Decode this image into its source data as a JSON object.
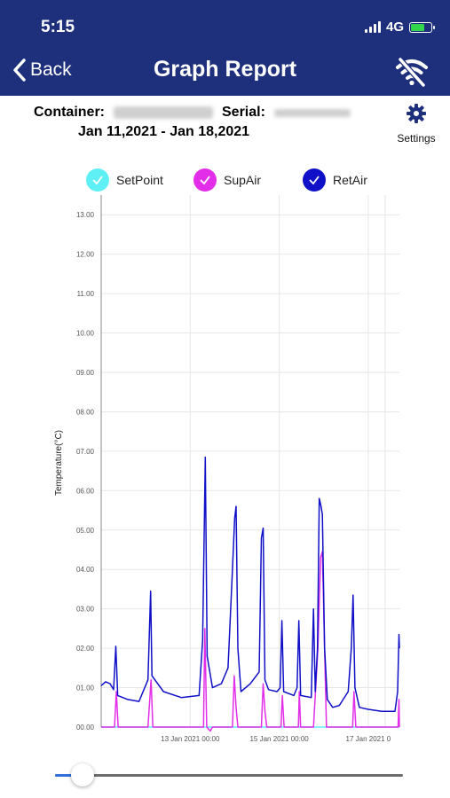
{
  "status_bar": {
    "time": "5:15",
    "network": "4G"
  },
  "header": {
    "back_label": "Back",
    "title": "Graph Report"
  },
  "info": {
    "container_label": "Container:",
    "serial_label": "Serial:",
    "date_range": "Jan 11,2021 - Jan 18,2021"
  },
  "settings": {
    "label": "Settings"
  },
  "colors": {
    "header_bg": "#1e2f7c",
    "setpoint": "#5ef0f5",
    "supair": "#e22ee8",
    "retair": "#1010c8",
    "grid": "#e6e6e6"
  },
  "slider": {
    "value": 0.08
  },
  "chart_data": {
    "type": "line",
    "ylabel": "Temperature(°C)",
    "ylim": [
      0,
      13.5
    ],
    "yticks": [
      "00.00",
      "01.00",
      "02.00",
      "03.00",
      "04.00",
      "05.00",
      "06.00",
      "07.00",
      "08.00",
      "09.00",
      "10.00",
      "11.00",
      "12.00",
      "13.00"
    ],
    "xlim": [
      11.0,
      17.7
    ],
    "xticks": [
      {
        "x": 13.0,
        "label": "13 Jan 2021 00:00"
      },
      {
        "x": 15.0,
        "label": "15 Jan 2021 00:00"
      },
      {
        "x": 17.0,
        "label": "17 Jan 2021 0"
      }
    ],
    "series": [
      {
        "name": "SetPoint",
        "color": "#5ef0f5",
        "points": [
          [
            11.0,
            0.0
          ],
          [
            17.7,
            0.0
          ]
        ]
      },
      {
        "name": "SupAir",
        "color": "#e22ee8",
        "points": [
          [
            11.0,
            0.0
          ],
          [
            11.3,
            0.0
          ],
          [
            11.34,
            0.9
          ],
          [
            11.38,
            0.0
          ],
          [
            12.05,
            0.0
          ],
          [
            12.12,
            1.2
          ],
          [
            12.16,
            0.0
          ],
          [
            13.3,
            0.0
          ],
          [
            13.33,
            2.5
          ],
          [
            13.37,
            0.0
          ],
          [
            13.45,
            -0.1
          ],
          [
            13.5,
            0.0
          ],
          [
            13.95,
            0.0
          ],
          [
            13.99,
            1.3
          ],
          [
            14.03,
            0.5
          ],
          [
            14.07,
            0.0
          ],
          [
            14.6,
            0.0
          ],
          [
            14.64,
            1.1
          ],
          [
            14.68,
            0.4
          ],
          [
            14.72,
            0.0
          ],
          [
            15.04,
            0.0
          ],
          [
            15.07,
            0.8
          ],
          [
            15.11,
            0.0
          ],
          [
            15.43,
            0.0
          ],
          [
            15.45,
            0.9
          ],
          [
            15.48,
            0.0
          ],
          [
            15.77,
            0.0
          ],
          [
            15.87,
            2.0
          ],
          [
            15.93,
            4.3
          ],
          [
            15.97,
            4.45
          ],
          [
            16.02,
            2.0
          ],
          [
            16.06,
            0.0
          ],
          [
            16.65,
            0.0
          ],
          [
            16.68,
            0.9
          ],
          [
            16.72,
            0.0
          ],
          [
            17.67,
            0.0
          ],
          [
            17.69,
            0.7
          ],
          [
            17.7,
            0.0
          ]
        ]
      },
      {
        "name": "RetAir",
        "color": "#1010c8",
        "points": [
          [
            11.0,
            1.05
          ],
          [
            11.1,
            1.15
          ],
          [
            11.2,
            1.1
          ],
          [
            11.28,
            0.95
          ],
          [
            11.33,
            2.05
          ],
          [
            11.37,
            0.8
          ],
          [
            11.6,
            0.7
          ],
          [
            11.85,
            0.65
          ],
          [
            12.05,
            1.2
          ],
          [
            12.11,
            3.45
          ],
          [
            12.14,
            1.3
          ],
          [
            12.4,
            0.9
          ],
          [
            12.8,
            0.75
          ],
          [
            13.2,
            0.8
          ],
          [
            13.28,
            2.2
          ],
          [
            13.34,
            6.85
          ],
          [
            13.38,
            1.8
          ],
          [
            13.5,
            1.0
          ],
          [
            13.7,
            1.1
          ],
          [
            13.85,
            1.5
          ],
          [
            13.95,
            4.0
          ],
          [
            14.0,
            5.3
          ],
          [
            14.03,
            5.6
          ],
          [
            14.07,
            2.0
          ],
          [
            14.14,
            0.9
          ],
          [
            14.35,
            1.1
          ],
          [
            14.55,
            1.4
          ],
          [
            14.6,
            4.8
          ],
          [
            14.64,
            5.05
          ],
          [
            14.68,
            1.2
          ],
          [
            14.76,
            0.95
          ],
          [
            14.95,
            0.9
          ],
          [
            15.02,
            1.0
          ],
          [
            15.06,
            2.7
          ],
          [
            15.1,
            0.9
          ],
          [
            15.33,
            0.8
          ],
          [
            15.4,
            1.0
          ],
          [
            15.44,
            2.7
          ],
          [
            15.48,
            0.8
          ],
          [
            15.72,
            0.75
          ],
          [
            15.77,
            3.0
          ],
          [
            15.81,
            0.9
          ],
          [
            15.86,
            2.0
          ],
          [
            15.9,
            5.8
          ],
          [
            15.94,
            5.6
          ],
          [
            15.97,
            5.4
          ],
          [
            16.02,
            2.0
          ],
          [
            16.08,
            0.7
          ],
          [
            16.2,
            0.5
          ],
          [
            16.35,
            0.55
          ],
          [
            16.55,
            0.9
          ],
          [
            16.62,
            2.0
          ],
          [
            16.66,
            3.35
          ],
          [
            16.7,
            1.0
          ],
          [
            16.8,
            0.5
          ],
          [
            17.0,
            0.45
          ],
          [
            17.3,
            0.4
          ],
          [
            17.6,
            0.4
          ],
          [
            17.66,
            0.9
          ],
          [
            17.69,
            2.35
          ],
          [
            17.7,
            2.0
          ]
        ]
      }
    ]
  }
}
